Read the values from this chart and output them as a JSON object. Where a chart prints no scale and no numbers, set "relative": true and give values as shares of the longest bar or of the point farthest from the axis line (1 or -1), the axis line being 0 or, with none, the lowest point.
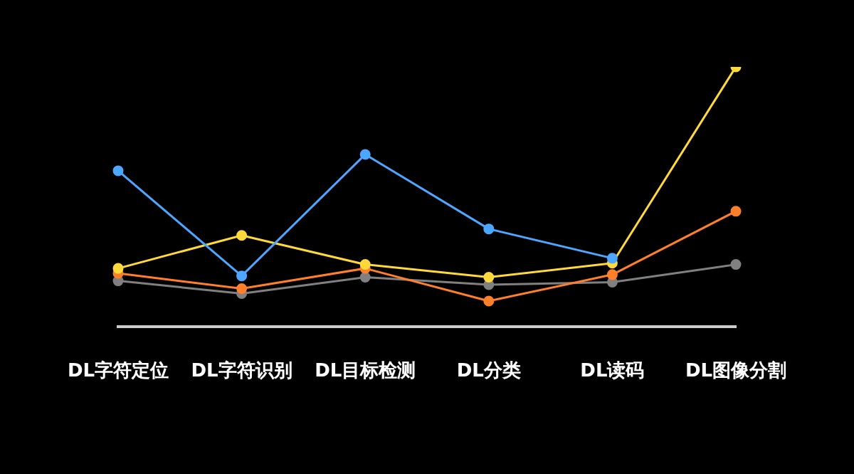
{
  "chart_data": {
    "type": "line",
    "relative": true,
    "categories": [
      "DL字符定位",
      "DL字符识别",
      "DL目标检测",
      "DL分类",
      "DL读码",
      "DL图像分割"
    ],
    "marker": "circle",
    "grid": false,
    "legend": false,
    "series": [
      {
        "color": "#4da6ff",
        "values": [
          0.6,
          0.195,
          0.663,
          0.376,
          0.263,
          null
        ]
      },
      {
        "color": "#ffd93b",
        "values": [
          0.224,
          0.351,
          0.239,
          0.19,
          0.244,
          1
        ]
      },
      {
        "color": "#ff7f2a",
        "values": [
          0.205,
          0.146,
          0.224,
          0.098,
          0.2,
          0.444
        ]
      },
      {
        "color": "#808080",
        "values": [
          0.176,
          0.127,
          0.19,
          0.161,
          0.171,
          0.239
        ]
      }
    ]
  }
}
